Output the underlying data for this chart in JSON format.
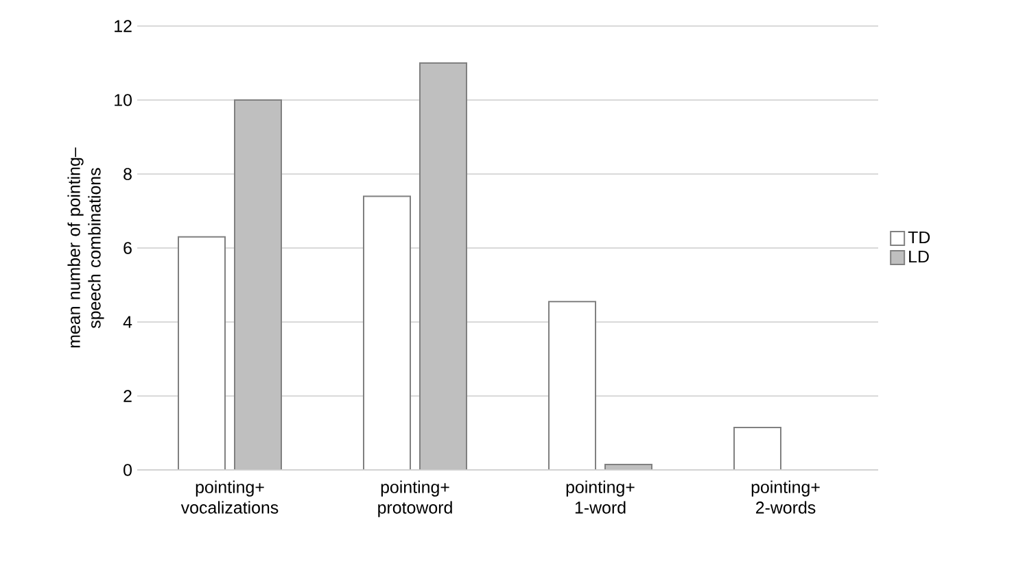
{
  "chart_data": {
    "type": "bar",
    "ylabel": "mean number of pointing–speech combinations",
    "categories": [
      "pointing+ vocalizations",
      "pointing+ protoword",
      "pointing+ 1-word",
      "pointing+ 2-words"
    ],
    "series": [
      {
        "name": "TD",
        "color": "#ffffff",
        "values": [
          6.3,
          7.4,
          4.55,
          1.15
        ]
      },
      {
        "name": "LD",
        "color": "#bfbfbf",
        "values": [
          10,
          11,
          0.15,
          0
        ]
      }
    ],
    "ylim": [
      0,
      12
    ],
    "yticks": [
      0,
      2,
      4,
      6,
      8,
      10,
      12
    ],
    "grid": "y",
    "legend": "right"
  }
}
